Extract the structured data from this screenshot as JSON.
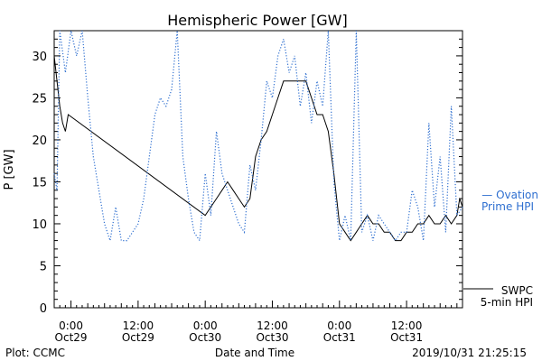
{
  "chart_data": {
    "type": "line",
    "title": "Hemispheric Power [GW]",
    "ylabel": "P [GW]",
    "xlabel": "Date and Time",
    "ylim": [
      0,
      33
    ],
    "yticks": [
      0,
      5,
      10,
      15,
      20,
      25,
      30
    ],
    "xlim": [
      "2019-10-28 21:00",
      "2019-10-31 22:00"
    ],
    "xticks": [
      {
        "t": "2019-10-29 00:00",
        "time": "0:00",
        "date": "Oct29"
      },
      {
        "t": "2019-10-29 12:00",
        "time": "12:00",
        "date": "Oct29"
      },
      {
        "t": "2019-10-30 00:00",
        "time": "0:00",
        "date": "Oct30"
      },
      {
        "t": "2019-10-30 12:00",
        "time": "12:00",
        "date": "Oct30"
      },
      {
        "t": "2019-10-31 00:00",
        "time": "0:00",
        "date": "Oct31"
      },
      {
        "t": "2019-10-31 12:00",
        "time": "12:00",
        "date": "Oct31"
      }
    ],
    "grid": false,
    "legend_position": "right",
    "series": [
      {
        "name": "SWPC 5-min HPI",
        "color": "#000000",
        "style": "solid",
        "points": [
          [
            "2019-10-28 21:00",
            30
          ],
          [
            "2019-10-28 21:30",
            27
          ],
          [
            "2019-10-28 22:00",
            24
          ],
          [
            "2019-10-28 22:30",
            22
          ],
          [
            "2019-10-28 23:00",
            21
          ],
          [
            "2019-10-28 23:30",
            23
          ],
          [
            "2019-10-30 00:00",
            11
          ],
          [
            "2019-10-30 01:00",
            12
          ],
          [
            "2019-10-30 02:00",
            13
          ],
          [
            "2019-10-30 03:00",
            14
          ],
          [
            "2019-10-30 04:00",
            15
          ],
          [
            "2019-10-30 05:00",
            14
          ],
          [
            "2019-10-30 06:00",
            13
          ],
          [
            "2019-10-30 07:00",
            12
          ],
          [
            "2019-10-30 08:00",
            13
          ],
          [
            "2019-10-30 09:00",
            18
          ],
          [
            "2019-10-30 10:00",
            20
          ],
          [
            "2019-10-30 11:00",
            21
          ],
          [
            "2019-10-30 12:00",
            23
          ],
          [
            "2019-10-30 13:00",
            25
          ],
          [
            "2019-10-30 14:00",
            27
          ],
          [
            "2019-10-30 16:00",
            27
          ],
          [
            "2019-10-30 18:00",
            27
          ],
          [
            "2019-10-30 19:00",
            25
          ],
          [
            "2019-10-30 20:00",
            23
          ],
          [
            "2019-10-30 21:00",
            23
          ],
          [
            "2019-10-30 22:00",
            21
          ],
          [
            "2019-10-30 23:00",
            16
          ],
          [
            "2019-10-31 00:00",
            10
          ],
          [
            "2019-10-31 01:00",
            9
          ],
          [
            "2019-10-31 02:00",
            8
          ],
          [
            "2019-10-31 03:00",
            9
          ],
          [
            "2019-10-31 04:00",
            10
          ],
          [
            "2019-10-31 05:00",
            11
          ],
          [
            "2019-10-31 06:00",
            10
          ],
          [
            "2019-10-31 07:00",
            10
          ],
          [
            "2019-10-31 08:00",
            9
          ],
          [
            "2019-10-31 09:00",
            9
          ],
          [
            "2019-10-31 10:00",
            8
          ],
          [
            "2019-10-31 11:00",
            8
          ],
          [
            "2019-10-31 12:00",
            9
          ],
          [
            "2019-10-31 13:00",
            9
          ],
          [
            "2019-10-31 14:00",
            10
          ],
          [
            "2019-10-31 15:00",
            10
          ],
          [
            "2019-10-31 16:00",
            11
          ],
          [
            "2019-10-31 17:00",
            10
          ],
          [
            "2019-10-31 18:00",
            10
          ],
          [
            "2019-10-31 19:00",
            11
          ],
          [
            "2019-10-31 20:00",
            10
          ],
          [
            "2019-10-31 21:00",
            11
          ],
          [
            "2019-10-31 21:30",
            13
          ],
          [
            "2019-10-31 22:00",
            12
          ]
        ]
      },
      {
        "name": "Ovation Prime HPI",
        "color": "#2e6fd0",
        "style": "dotted",
        "points": [
          [
            "2019-10-28 21:00",
            16
          ],
          [
            "2019-10-28 21:30",
            14
          ],
          [
            "2019-10-28 22:00",
            33
          ],
          [
            "2019-10-28 23:00",
            28
          ],
          [
            "2019-10-29 00:00",
            33
          ],
          [
            "2019-10-29 01:00",
            30
          ],
          [
            "2019-10-29 02:00",
            33
          ],
          [
            "2019-10-29 03:00",
            25
          ],
          [
            "2019-10-29 04:00",
            18
          ],
          [
            "2019-10-29 05:00",
            14
          ],
          [
            "2019-10-29 06:00",
            10
          ],
          [
            "2019-10-29 07:00",
            8
          ],
          [
            "2019-10-29 08:00",
            12
          ],
          [
            "2019-10-29 09:00",
            8
          ],
          [
            "2019-10-29 10:00",
            8
          ],
          [
            "2019-10-29 11:00",
            9
          ],
          [
            "2019-10-29 12:00",
            10
          ],
          [
            "2019-10-29 13:00",
            13
          ],
          [
            "2019-10-29 14:00",
            18
          ],
          [
            "2019-10-29 15:00",
            23
          ],
          [
            "2019-10-29 16:00",
            25
          ],
          [
            "2019-10-29 17:00",
            24
          ],
          [
            "2019-10-29 18:00",
            26
          ],
          [
            "2019-10-29 19:00",
            33
          ],
          [
            "2019-10-29 20:00",
            18
          ],
          [
            "2019-10-29 21:00",
            13
          ],
          [
            "2019-10-29 22:00",
            9
          ],
          [
            "2019-10-29 23:00",
            8
          ],
          [
            "2019-10-30 00:00",
            16
          ],
          [
            "2019-10-30 01:00",
            11
          ],
          [
            "2019-10-30 02:00",
            21
          ],
          [
            "2019-10-30 03:00",
            16
          ],
          [
            "2019-10-30 04:00",
            14
          ],
          [
            "2019-10-30 05:00",
            12
          ],
          [
            "2019-10-30 06:00",
            10
          ],
          [
            "2019-10-30 07:00",
            9
          ],
          [
            "2019-10-30 08:00",
            17
          ],
          [
            "2019-10-30 09:00",
            14
          ],
          [
            "2019-10-30 10:00",
            20
          ],
          [
            "2019-10-30 11:00",
            27
          ],
          [
            "2019-10-30 12:00",
            25
          ],
          [
            "2019-10-30 13:00",
            30
          ],
          [
            "2019-10-30 14:00",
            32
          ],
          [
            "2019-10-30 15:00",
            28
          ],
          [
            "2019-10-30 16:00",
            30
          ],
          [
            "2019-10-30 17:00",
            24
          ],
          [
            "2019-10-30 18:00",
            28
          ],
          [
            "2019-10-30 19:00",
            22
          ],
          [
            "2019-10-30 20:00",
            27
          ],
          [
            "2019-10-30 21:00",
            24
          ],
          [
            "2019-10-30 22:00",
            33
          ],
          [
            "2019-10-30 23:00",
            15
          ],
          [
            "2019-10-31 00:00",
            8
          ],
          [
            "2019-10-31 01:00",
            11
          ],
          [
            "2019-10-31 02:00",
            8
          ],
          [
            "2019-10-31 03:00",
            33
          ],
          [
            "2019-10-31 04:00",
            9
          ],
          [
            "2019-10-31 05:00",
            11
          ],
          [
            "2019-10-31 06:00",
            8
          ],
          [
            "2019-10-31 07:00",
            11
          ],
          [
            "2019-10-31 08:00",
            10
          ],
          [
            "2019-10-31 09:00",
            9
          ],
          [
            "2019-10-31 10:00",
            8
          ],
          [
            "2019-10-31 11:00",
            9
          ],
          [
            "2019-10-31 12:00",
            9
          ],
          [
            "2019-10-31 13:00",
            14
          ],
          [
            "2019-10-31 14:00",
            12
          ],
          [
            "2019-10-31 15:00",
            8
          ],
          [
            "2019-10-31 16:00",
            22
          ],
          [
            "2019-10-31 17:00",
            12
          ],
          [
            "2019-10-31 18:00",
            18
          ],
          [
            "2019-10-31 19:00",
            9
          ],
          [
            "2019-10-31 20:00",
            24
          ],
          [
            "2019-10-31 21:00",
            11
          ],
          [
            "2019-10-31 22:00",
            12
          ]
        ]
      }
    ]
  },
  "legend": {
    "ovation_line1": "— Ovation",
    "ovation_line2": "Prime HPI",
    "swpc_line1": "SWPC",
    "swpc_line2": "5-min HPI"
  },
  "footer": {
    "left": "Plot: CCMC",
    "timestamp": "2019/10/31 21:25:15"
  }
}
